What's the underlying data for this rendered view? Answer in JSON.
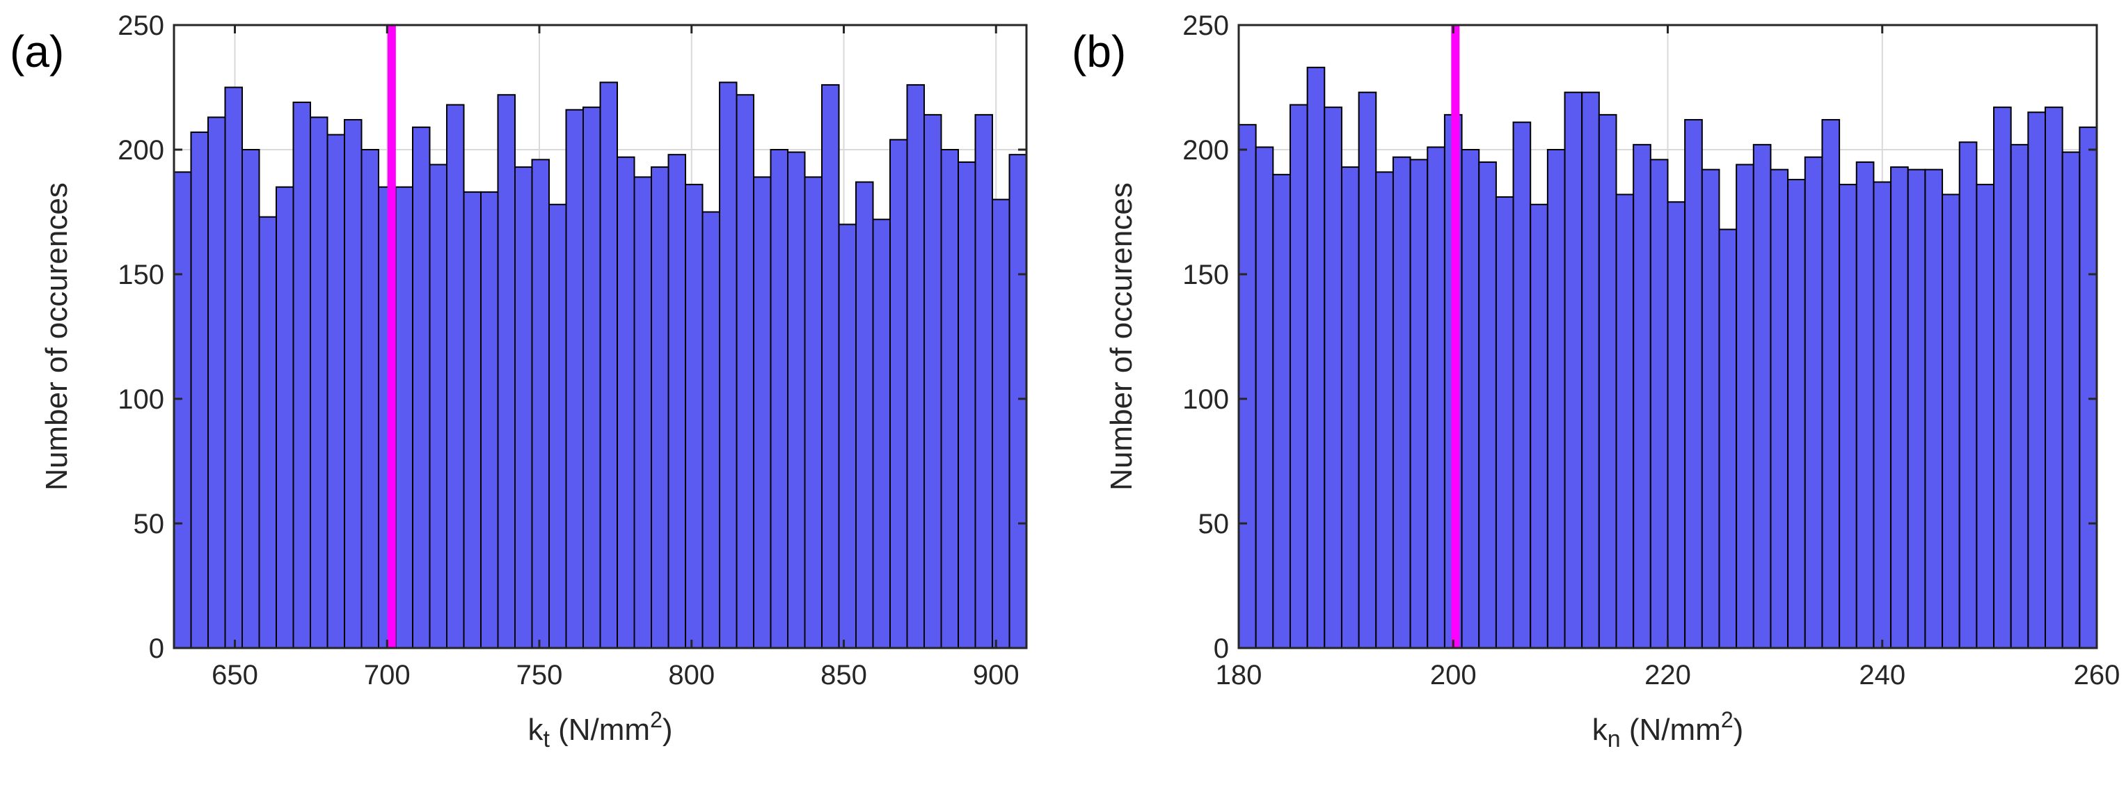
{
  "colors": {
    "bar_fill": "#5b5bf2",
    "bar_edge": "#000000",
    "marker_line": "#ff00ff",
    "grid": "#d9d9d9",
    "axis": "#262626"
  },
  "chart_data": [
    {
      "type": "bar",
      "panel_label": "(a)",
      "title": "",
      "ylabel": "Number of occurences",
      "xlabel": {
        "base": "k",
        "sub": "t",
        "unit_pre": " (N/mm",
        "unit_sup": "2",
        "unit_post": ")"
      },
      "xlim": [
        630,
        910
      ],
      "ylim": [
        0,
        250
      ],
      "xticks": [
        650,
        700,
        750,
        800,
        850,
        900
      ],
      "yticks": [
        0,
        50,
        100,
        150,
        200,
        250
      ],
      "grid": true,
      "bin_start": 630,
      "bin_width": 5.6,
      "values": [
        191,
        207,
        213,
        225,
        200,
        173,
        185,
        219,
        213,
        206,
        212,
        200,
        185,
        185,
        209,
        194,
        218,
        183,
        183,
        222,
        193,
        196,
        178,
        216,
        217,
        227,
        197,
        189,
        193,
        198,
        186,
        175,
        227,
        222,
        189,
        200,
        199,
        189,
        226,
        170,
        187,
        172,
        204,
        226,
        214,
        200,
        195,
        214,
        180,
        198
      ],
      "reference_line": 701.5
    },
    {
      "type": "bar",
      "panel_label": "(b)",
      "title": "",
      "ylabel": "Number of occurences",
      "xlabel": {
        "base": "k",
        "sub": "n",
        "unit_pre": " (N/mm",
        "unit_sup": "2",
        "unit_post": ")"
      },
      "xlim": [
        180,
        260
      ],
      "ylim": [
        0,
        250
      ],
      "xticks": [
        180,
        200,
        220,
        240,
        260
      ],
      "yticks": [
        0,
        50,
        100,
        150,
        200,
        250
      ],
      "grid": true,
      "bin_start": 180,
      "bin_width": 1.6,
      "values": [
        210,
        201,
        190,
        218,
        233,
        217,
        193,
        223,
        191,
        197,
        196,
        201,
        214,
        200,
        195,
        181,
        211,
        178,
        200,
        223,
        223,
        214,
        182,
        202,
        196,
        179,
        212,
        192,
        168,
        194,
        202,
        192,
        188,
        197,
        212,
        186,
        195,
        187,
        193,
        192,
        192,
        182,
        203,
        186,
        217,
        202,
        215,
        217,
        199,
        209
      ],
      "reference_line": 200.2
    }
  ]
}
